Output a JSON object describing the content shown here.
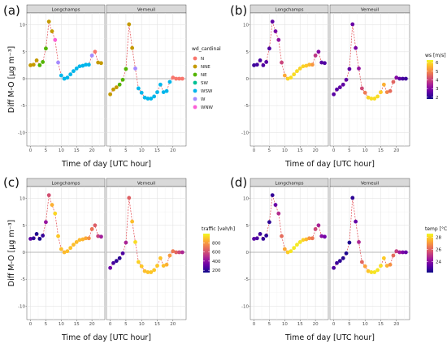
{
  "chart_data": [
    {
      "panel": "(a)",
      "type": "scatter",
      "facets": [
        "Longchamps",
        "Verneuil"
      ],
      "xlabel": "Time of day [UTC hour]",
      "ylabel": "Diff M-O [µg m⁻³]",
      "xlim": [
        -1.2,
        24.2
      ],
      "ylim": [
        -12.5,
        12.2
      ],
      "xticks": [
        0,
        5,
        10,
        15,
        20
      ],
      "yticks": [
        -10,
        -5,
        0,
        5,
        10
      ],
      "color_by": "wd_cardinal",
      "legend": {
        "title": "wd_cardinal",
        "type": "discrete",
        "entries": [
          {
            "label": "N",
            "color": "#F8766D"
          },
          {
            "label": "NNE",
            "color": "#C49A00"
          },
          {
            "label": "NE",
            "color": "#53B400"
          },
          {
            "label": "SW",
            "color": "#00C094"
          },
          {
            "label": "WSW",
            "color": "#00B6EB"
          },
          {
            "label": "W",
            "color": "#A58AFF"
          },
          {
            "label": "WNW",
            "color": "#FB61D7"
          }
        ]
      },
      "series": [
        {
          "facet": "Longchamps",
          "hour": [
            0,
            1,
            2,
            3,
            4,
            5,
            6,
            7,
            8,
            9,
            10,
            11,
            12,
            13,
            14,
            15,
            16,
            17,
            18,
            19,
            20,
            21,
            22,
            23
          ],
          "values": [
            2.5,
            2.6,
            3.4,
            2.5,
            3.1,
            5.6,
            10.6,
            8.8,
            7.2,
            3.0,
            0.6,
            0.0,
            0.2,
            0.8,
            1.4,
            1.9,
            2.3,
            2.4,
            2.6,
            2.6,
            4.3,
            5.0,
            3.0,
            2.9
          ],
          "categories": [
            "NNE",
            "NNE",
            "NNE",
            "NE",
            "NE",
            "NE",
            "NNE",
            "NNE",
            "WNW",
            "W",
            "WSW",
            "WSW",
            "WSW",
            "WSW",
            "WSW",
            "WSW",
            "WSW",
            "WSW",
            "WSW",
            "WSW",
            "W",
            "N",
            "NNE",
            "NNE"
          ]
        },
        {
          "facet": "Verneuil",
          "hour": [
            0,
            1,
            2,
            3,
            4,
            5,
            6,
            7,
            8,
            9,
            10,
            11,
            12,
            13,
            14,
            15,
            16,
            17,
            18,
            19,
            20,
            21,
            22,
            23
          ],
          "values": [
            -2.9,
            -2.0,
            -1.6,
            -1.1,
            -0.2,
            1.8,
            10.1,
            5.7,
            1.9,
            -1.8,
            -2.6,
            -3.5,
            -3.7,
            -3.7,
            -3.3,
            -2.5,
            -1.1,
            -2.5,
            -2.3,
            -0.6,
            0.2,
            0.0,
            0.0,
            0.0
          ],
          "categories": [
            "NNE",
            "NNE",
            "NNE",
            "NE",
            "NE",
            "NE",
            "NNE",
            "NNE",
            "W",
            "WSW",
            "WSW",
            "WSW",
            "WSW",
            "WSW",
            "WSW",
            "WSW",
            "WSW",
            "WSW",
            "WSW",
            "WSW",
            "N",
            "N",
            "N",
            "N"
          ]
        }
      ]
    },
    {
      "panel": "(b)",
      "type": "scatter",
      "facets": [
        "Longchamps",
        "Verneuil"
      ],
      "xlabel": "Time of day [UTC hour]",
      "ylabel": "",
      "xlim": [
        -1.2,
        24.2
      ],
      "ylim": [
        -12.5,
        12.2
      ],
      "xticks": [
        0,
        5,
        10,
        15,
        20
      ],
      "yticks": [
        -10,
        -5,
        0,
        5,
        10
      ],
      "color_by": "ws [m/s]",
      "legend": {
        "title": "ws [m/s]",
        "type": "continuous",
        "range": [
          1.8,
          6.3
        ],
        "ticks": [
          2,
          3,
          4,
          5,
          6
        ]
      },
      "series": [
        {
          "facet": "Longchamps",
          "hour": [
            0,
            1,
            2,
            3,
            4,
            5,
            6,
            7,
            8,
            9,
            10,
            11,
            12,
            13,
            14,
            15,
            16,
            17,
            18,
            19,
            20,
            21,
            22,
            23
          ],
          "values": [
            2.5,
            2.6,
            3.4,
            2.5,
            3.1,
            5.6,
            10.6,
            8.8,
            7.2,
            3.0,
            0.6,
            0.0,
            0.2,
            0.8,
            1.4,
            1.9,
            2.3,
            2.4,
            2.6,
            2.6,
            4.3,
            5.0,
            3.0,
            2.9
          ],
          "color_values": [
            2.2,
            2.3,
            2.3,
            2.4,
            2.5,
            2.4,
            2.6,
            2.9,
            3.2,
            4.0,
            5.4,
            5.9,
            6.0,
            6.0,
            6.0,
            5.9,
            5.9,
            5.8,
            5.6,
            5.2,
            3.8,
            3.0,
            2.5,
            2.4
          ]
        },
        {
          "facet": "Verneuil",
          "hour": [
            0,
            1,
            2,
            3,
            4,
            5,
            6,
            7,
            8,
            9,
            10,
            11,
            12,
            13,
            14,
            15,
            16,
            17,
            18,
            19,
            20,
            21,
            22,
            23
          ],
          "values": [
            -2.9,
            -2.0,
            -1.6,
            -1.1,
            -0.2,
            1.8,
            10.1,
            5.7,
            1.9,
            -1.8,
            -2.6,
            -3.5,
            -3.7,
            -3.7,
            -3.3,
            -2.5,
            -1.1,
            -2.5,
            -2.3,
            -0.6,
            0.2,
            0.0,
            0.0,
            0.0
          ],
          "color_values": [
            2.5,
            2.5,
            2.6,
            2.6,
            2.6,
            2.6,
            2.7,
            2.9,
            3.2,
            4.1,
            4.8,
            5.9,
            6.0,
            6.0,
            6.0,
            5.8,
            5.5,
            5.0,
            4.6,
            4.5,
            3.0,
            2.6,
            2.3,
            2.2
          ]
        }
      ]
    },
    {
      "panel": "(c)",
      "type": "scatter",
      "facets": [
        "Longchamps",
        "Verneuil"
      ],
      "xlabel": "Time of day [UTC hour]",
      "ylabel": "Diff M-O [µg m⁻³]",
      "xlim": [
        -1.2,
        24.2
      ],
      "ylim": [
        -12.5,
        12.2
      ],
      "xticks": [
        0,
        5,
        10,
        15,
        20
      ],
      "yticks": [
        -10,
        -5,
        0,
        5,
        10
      ],
      "color_by": "traffic [veh/h]",
      "legend": {
        "title": "traffic [veh/h]",
        "type": "continuous",
        "range": [
          150,
          1000
        ],
        "ticks": [
          200,
          400,
          600,
          800
        ]
      },
      "series": [
        {
          "facet": "Longchamps",
          "hour": [
            0,
            1,
            2,
            3,
            4,
            5,
            6,
            7,
            8,
            9,
            10,
            11,
            12,
            13,
            14,
            15,
            16,
            17,
            18,
            19,
            20,
            21,
            22,
            23
          ],
          "values": [
            2.5,
            2.6,
            3.4,
            2.5,
            3.1,
            5.6,
            10.6,
            8.8,
            7.2,
            3.0,
            0.6,
            0.0,
            0.2,
            0.8,
            1.4,
            1.9,
            2.3,
            2.4,
            2.6,
            2.6,
            4.3,
            5.0,
            3.0,
            2.9
          ],
          "color_values": [
            290,
            210,
            180,
            170,
            220,
            420,
            600,
            850,
            930,
            900,
            880,
            870,
            880,
            890,
            880,
            880,
            870,
            860,
            830,
            780,
            700,
            640,
            560,
            450
          ]
        },
        {
          "facet": "Verneuil",
          "hour": [
            0,
            1,
            2,
            3,
            4,
            5,
            6,
            7,
            8,
            9,
            10,
            11,
            12,
            13,
            14,
            15,
            16,
            17,
            18,
            19,
            20,
            21,
            22,
            23
          ],
          "values": [
            -2.9,
            -2.0,
            -1.6,
            -1.1,
            -0.2,
            1.8,
            10.1,
            5.7,
            1.9,
            -1.8,
            -2.6,
            -3.5,
            -3.7,
            -3.7,
            -3.3,
            -2.5,
            -1.1,
            -2.5,
            -2.3,
            -0.6,
            0.2,
            0.0,
            0.0,
            0.0
          ],
          "color_values": [
            330,
            250,
            210,
            200,
            260,
            470,
            650,
            880,
            940,
            920,
            900,
            880,
            890,
            900,
            900,
            900,
            890,
            880,
            850,
            800,
            720,
            660,
            580,
            480
          ]
        }
      ]
    },
    {
      "panel": "(d)",
      "type": "scatter",
      "facets": [
        "Longchamps",
        "Verneuil"
      ],
      "xlabel": "Time of day [UTC hour]",
      "ylabel": "",
      "xlim": [
        -1.2,
        24.2
      ],
      "ylim": [
        -12.5,
        12.2
      ],
      "xticks": [
        0,
        5,
        10,
        15,
        20
      ],
      "yticks": [
        -10,
        -5,
        0,
        5,
        10
      ],
      "color_by": "temp [°C]",
      "legend": {
        "title": "temp [°C]",
        "type": "continuous",
        "range": [
          22.2,
          28.6
        ],
        "ticks": [
          24,
          26,
          28
        ]
      },
      "series": [
        {
          "facet": "Longchamps",
          "hour": [
            0,
            1,
            2,
            3,
            4,
            5,
            6,
            7,
            8,
            9,
            10,
            11,
            12,
            13,
            14,
            15,
            16,
            17,
            18,
            19,
            20,
            21,
            22,
            23
          ],
          "values": [
            2.5,
            2.6,
            3.4,
            2.5,
            3.1,
            5.6,
            10.6,
            8.8,
            7.2,
            3.0,
            0.6,
            0.0,
            0.2,
            0.8,
            1.4,
            1.9,
            2.3,
            2.4,
            2.6,
            2.6,
            4.3,
            5.0,
            3.0,
            2.9
          ],
          "color_values": [
            23.2,
            23.0,
            22.8,
            22.7,
            22.6,
            22.6,
            22.7,
            23.5,
            24.8,
            26.2,
            27.3,
            27.9,
            28.3,
            28.4,
            28.4,
            28.3,
            28.0,
            27.6,
            27.0,
            26.4,
            25.4,
            24.6,
            24.0,
            23.6
          ]
        },
        {
          "facet": "Verneuil",
          "hour": [
            0,
            1,
            2,
            3,
            4,
            5,
            6,
            7,
            8,
            9,
            10,
            11,
            12,
            13,
            14,
            15,
            16,
            17,
            18,
            19,
            20,
            21,
            22,
            23
          ],
          "values": [
            -2.9,
            -2.0,
            -1.6,
            -1.1,
            -0.2,
            1.8,
            10.1,
            5.7,
            1.9,
            -1.8,
            -2.6,
            -3.5,
            -3.7,
            -3.7,
            -3.3,
            -2.5,
            -1.1,
            -2.5,
            -2.3,
            -0.6,
            0.2,
            0.0,
            0.0,
            0.0
          ],
          "color_values": [
            23.0,
            22.8,
            22.6,
            22.5,
            22.4,
            22.4,
            22.6,
            23.4,
            24.7,
            26.1,
            27.2,
            27.8,
            28.2,
            28.3,
            28.3,
            28.2,
            27.9,
            27.5,
            26.9,
            26.2,
            25.2,
            24.4,
            23.8,
            23.4
          ]
        }
      ]
    }
  ]
}
